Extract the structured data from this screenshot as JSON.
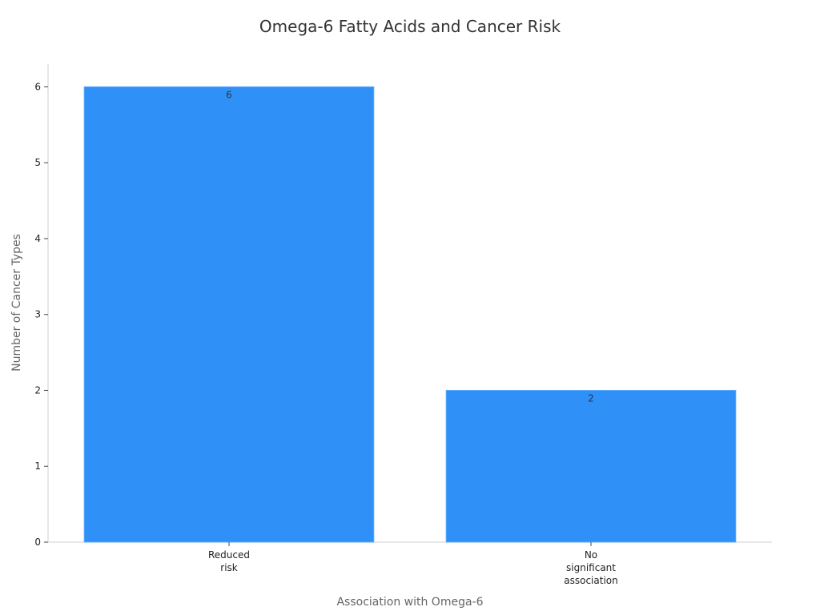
{
  "chart_data": {
    "type": "bar",
    "title": "Omega-6 Fatty Acids and Cancer Risk",
    "xlabel": "Association with Omega-6",
    "ylabel": "Number of Cancer Types",
    "categories": [
      [
        "Reduced",
        "risk"
      ],
      [
        "No",
        "significant",
        "association"
      ]
    ],
    "values": [
      6,
      2
    ],
    "data_labels": [
      "6",
      "2"
    ],
    "ylim": [
      0,
      6.3
    ],
    "yticks": [
      0,
      1,
      2,
      3,
      4,
      5,
      6
    ],
    "ytick_labels": [
      "0",
      "1",
      "2",
      "3",
      "4",
      "5",
      "6"
    ],
    "grid": false,
    "legend": "none",
    "colors": {
      "bar": "#2f91f8",
      "bar_edge": "#5aa8fa"
    }
  }
}
